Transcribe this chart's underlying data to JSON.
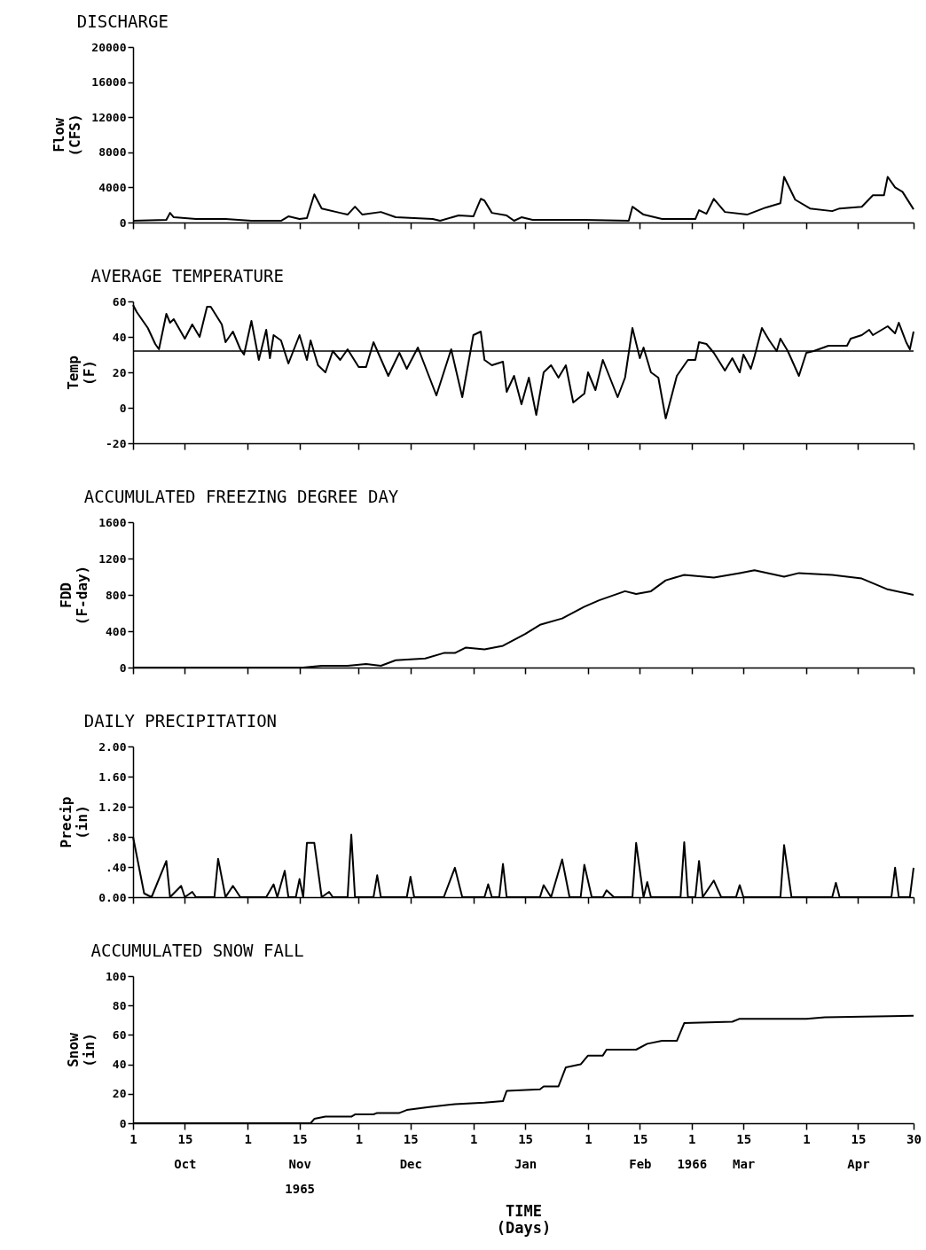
{
  "chart_data": [
    {
      "type": "line",
      "title": "DISCHARGE",
      "ylabel": "Flow\n(CFS)",
      "color": "#000000",
      "tick_labels": "y",
      "xlim": [
        "1965-10-01",
        "1966-04-30"
      ],
      "xticks": [
        {
          "value": "1965-10-01",
          "label": null
        },
        {
          "value": "1965-10-15",
          "label": null
        },
        {
          "value": "1965-11-01",
          "label": null
        },
        {
          "value": "1965-11-15",
          "label": null
        },
        {
          "value": "1965-12-01",
          "label": null
        },
        {
          "value": "1965-12-15",
          "label": null
        },
        {
          "value": "1966-01-01",
          "label": null
        },
        {
          "value": "1966-01-15",
          "label": null
        },
        {
          "value": "1966-02-01",
          "label": null
        },
        {
          "value": "1966-02-15",
          "label": null
        },
        {
          "value": "1966-03-01",
          "label": null
        },
        {
          "value": "1966-03-15",
          "label": null
        },
        {
          "value": "1966-04-01",
          "label": null
        },
        {
          "value": "1966-04-15",
          "label": null
        },
        {
          "value": "1966-04-30",
          "label": null
        }
      ],
      "ylim": [
        0,
        20000
      ],
      "yticks": [
        0,
        4000,
        8000,
        12000,
        16000,
        20000
      ],
      "x": [
        "1965-10-01",
        "1965-10-10",
        "1965-10-11",
        "1965-10-12",
        "1965-10-18",
        "1965-10-26",
        "1965-11-02",
        "1965-11-10",
        "1965-11-12",
        "1965-11-15",
        "1965-11-17",
        "1965-11-19",
        "1965-11-21",
        "1965-11-26",
        "1965-11-28",
        "1965-11-30",
        "1965-12-02",
        "1965-12-07",
        "1965-12-11",
        "1965-12-21",
        "1965-12-23",
        "1965-12-28",
        "1966-01-01",
        "1966-01-03",
        "1966-01-04",
        "1966-01-06",
        "1966-01-10",
        "1966-01-12",
        "1966-01-14",
        "1966-01-17",
        "1966-01-31",
        "1966-02-12",
        "1966-02-13",
        "1966-02-16",
        "1966-02-21",
        "1966-03-02",
        "1966-03-03",
        "1966-03-05",
        "1966-03-07",
        "1966-03-10",
        "1966-03-16",
        "1966-03-21",
        "1966-03-25",
        "1966-03-26",
        "1966-03-29",
        "1966-04-02",
        "1966-04-08",
        "1966-04-10",
        "1966-04-16",
        "1966-04-19",
        "1966-04-22",
        "1966-04-23",
        "1966-04-25",
        "1966-04-27",
        "1966-04-30"
      ],
      "values": [
        200,
        300,
        1100,
        600,
        400,
        400,
        200,
        200,
        700,
        400,
        500,
        3200,
        1600,
        1100,
        900,
        1800,
        900,
        1200,
        600,
        400,
        200,
        800,
        700,
        2700,
        2500,
        1100,
        800,
        200,
        600,
        300,
        300,
        200,
        1800,
        900,
        400,
        400,
        1400,
        1000,
        2700,
        1200,
        900,
        1700,
        2200,
        5200,
        2600,
        1600,
        1300,
        1600,
        1800,
        3100,
        3100,
        5200,
        4000,
        3500,
        1500
      ]
    },
    {
      "type": "line",
      "title": "AVERAGE TEMPERATURE",
      "ylabel": "Temp\n(F)",
      "color": "#000000",
      "tick_labels": "y",
      "xlim": [
        "1965-10-01",
        "1966-04-30"
      ],
      "xticks": [
        {
          "value": "1965-10-01",
          "label": null
        },
        {
          "value": "1965-10-15",
          "label": null
        },
        {
          "value": "1965-11-01",
          "label": null
        },
        {
          "value": "1965-11-15",
          "label": null
        },
        {
          "value": "1965-12-01",
          "label": null
        },
        {
          "value": "1965-12-15",
          "label": null
        },
        {
          "value": "1966-01-01",
          "label": null
        },
        {
          "value": "1966-01-15",
          "label": null
        },
        {
          "value": "1966-02-01",
          "label": null
        },
        {
          "value": "1966-02-15",
          "label": null
        },
        {
          "value": "1966-03-01",
          "label": null
        },
        {
          "value": "1966-03-15",
          "label": null
        },
        {
          "value": "1966-04-01",
          "label": null
        },
        {
          "value": "1966-04-15",
          "label": null
        },
        {
          "value": "1966-04-30",
          "label": null
        }
      ],
      "ylim": [
        -20,
        60
      ],
      "yticks": [
        -20,
        0,
        20,
        40,
        60
      ],
      "ref_lines": [
        {
          "axis": "y",
          "value": 32
        }
      ],
      "x": [
        "1965-10-01",
        "1965-10-02",
        "1965-10-05",
        "1965-10-07",
        "1965-10-08",
        "1965-10-10",
        "1965-10-11",
        "1965-10-12",
        "1965-10-15",
        "1965-10-17",
        "1965-10-19",
        "1965-10-21",
        "1965-10-22",
        "1965-10-25",
        "1965-10-26",
        "1965-10-28",
        "1965-10-30",
        "1965-10-31",
        "1965-11-02",
        "1965-11-04",
        "1965-11-06",
        "1965-11-07",
        "1965-11-08",
        "1965-11-10",
        "1965-11-12",
        "1965-11-15",
        "1965-11-17",
        "1965-11-18",
        "1965-11-20",
        "1965-11-22",
        "1965-11-24",
        "1965-11-26",
        "1965-11-28",
        "1965-12-01",
        "1965-12-03",
        "1965-12-05",
        "1965-12-09",
        "1965-12-12",
        "1965-12-14",
        "1965-12-17",
        "1965-12-22",
        "1965-12-26",
        "1965-12-29",
        "1966-01-01",
        "1966-01-03",
        "1966-01-04",
        "1966-01-06",
        "1966-01-09",
        "1966-01-10",
        "1966-01-12",
        "1966-01-14",
        "1966-01-16",
        "1966-01-18",
        "1966-01-20",
        "1966-01-22",
        "1966-01-24",
        "1966-01-26",
        "1966-01-28",
        "1966-01-31",
        "1966-02-01",
        "1966-02-03",
        "1966-02-05",
        "1966-02-09",
        "1966-02-11",
        "1966-02-13",
        "1966-02-15",
        "1966-02-16",
        "1966-02-18",
        "1966-02-20",
        "1966-02-22",
        "1966-02-25",
        "1966-02-28",
        "1966-03-02",
        "1966-03-03",
        "1966-03-05",
        "1966-03-07",
        "1966-03-10",
        "1966-03-12",
        "1966-03-14",
        "1966-03-15",
        "1966-03-17",
        "1966-03-18",
        "1966-03-20",
        "1966-03-22",
        "1966-03-24",
        "1966-03-25",
        "1966-03-27",
        "1966-03-30",
        "1966-04-01",
        "1966-04-03",
        "1966-04-07",
        "1966-04-12",
        "1966-04-13",
        "1966-04-16",
        "1966-04-18",
        "1966-04-19",
        "1966-04-23",
        "1966-04-25",
        "1966-04-26",
        "1966-04-28",
        "1966-04-29",
        "1966-04-30"
      ],
      "values": [
        58,
        54,
        45,
        36,
        33,
        53,
        48,
        50,
        39,
        47,
        40,
        57,
        57,
        47,
        37,
        43,
        33,
        30,
        49,
        27,
        44,
        28,
        41,
        38,
        25,
        41,
        27,
        38,
        24,
        20,
        32,
        27,
        33,
        23,
        23,
        37,
        18,
        31,
        22,
        34,
        7,
        33,
        6,
        41,
        43,
        27,
        24,
        26,
        9,
        18,
        2,
        17,
        -4,
        20,
        24,
        17,
        24,
        3,
        8,
        20,
        10,
        27,
        6,
        17,
        45,
        28,
        34,
        20,
        17,
        -6,
        18,
        27,
        27,
        37,
        36,
        31,
        21,
        28,
        20,
        30,
        22,
        29,
        45,
        38,
        32,
        39,
        32,
        18,
        31,
        32,
        35,
        35,
        39,
        41,
        44,
        41,
        46,
        42,
        48,
        37,
        33,
        43
      ]
    },
    {
      "type": "line",
      "title": "ACCUMULATED FREEZING DEGREE DAY",
      "ylabel": "FDD\n(F-day)",
      "color": "#000000",
      "tick_labels": "y",
      "xlim": [
        "1965-10-01",
        "1966-04-30"
      ],
      "xticks": [
        {
          "value": "1965-10-01",
          "label": null
        },
        {
          "value": "1965-10-15",
          "label": null
        },
        {
          "value": "1965-11-01",
          "label": null
        },
        {
          "value": "1965-11-15",
          "label": null
        },
        {
          "value": "1965-12-01",
          "label": null
        },
        {
          "value": "1965-12-15",
          "label": null
        },
        {
          "value": "1966-01-01",
          "label": null
        },
        {
          "value": "1966-01-15",
          "label": null
        },
        {
          "value": "1966-02-01",
          "label": null
        },
        {
          "value": "1966-02-15",
          "label": null
        },
        {
          "value": "1966-03-01",
          "label": null
        },
        {
          "value": "1966-03-15",
          "label": null
        },
        {
          "value": "1966-04-01",
          "label": null
        },
        {
          "value": "1966-04-15",
          "label": null
        },
        {
          "value": "1966-04-30",
          "label": null
        }
      ],
      "ylim": [
        0,
        1600
      ],
      "yticks": [
        0,
        400,
        800,
        1200,
        1600
      ],
      "x": [
        "1965-10-01",
        "1965-11-16",
        "1965-11-21",
        "1965-11-28",
        "1965-12-03",
        "1965-12-07",
        "1965-12-11",
        "1965-12-15",
        "1965-12-19",
        "1965-12-24",
        "1965-12-27",
        "1965-12-30",
        "1966-01-04",
        "1966-01-09",
        "1966-01-15",
        "1966-01-19",
        "1966-01-25",
        "1966-01-31",
        "1966-02-04",
        "1966-02-11",
        "1966-02-14",
        "1966-02-18",
        "1966-02-22",
        "1966-02-27",
        "1966-03-07",
        "1966-03-14",
        "1966-03-18",
        "1966-03-26",
        "1966-03-30",
        "1966-04-08",
        "1966-04-16",
        "1966-04-23",
        "1966-04-30"
      ],
      "values": [
        0,
        0,
        20,
        20,
        40,
        20,
        80,
        90,
        100,
        160,
        160,
        220,
        200,
        240,
        370,
        470,
        540,
        670,
        740,
        840,
        810,
        840,
        960,
        1020,
        990,
        1040,
        1070,
        1000,
        1040,
        1020,
        980,
        860,
        800
      ]
    },
    {
      "type": "line",
      "title": "DAILY PRECIPITATION",
      "ylabel": "Precip\n(in)",
      "color": "#000000",
      "tick_labels": "y",
      "xlim": [
        "1965-10-01",
        "1966-04-30"
      ],
      "xticks": [
        {
          "value": "1965-10-01",
          "label": null
        },
        {
          "value": "1965-10-15",
          "label": null
        },
        {
          "value": "1965-11-01",
          "label": null
        },
        {
          "value": "1965-11-15",
          "label": null
        },
        {
          "value": "1965-12-01",
          "label": null
        },
        {
          "value": "1965-12-15",
          "label": null
        },
        {
          "value": "1966-01-01",
          "label": null
        },
        {
          "value": "1966-01-15",
          "label": null
        },
        {
          "value": "1966-02-01",
          "label": null
        },
        {
          "value": "1966-02-15",
          "label": null
        },
        {
          "value": "1966-03-01",
          "label": null
        },
        {
          "value": "1966-03-15",
          "label": null
        },
        {
          "value": "1966-04-01",
          "label": null
        },
        {
          "value": "1966-04-15",
          "label": null
        },
        {
          "value": "1966-04-30",
          "label": null
        }
      ],
      "ylim": [
        0,
        2
      ],
      "yticks": [
        {
          "value": 0,
          "label": "0.00"
        },
        {
          "value": 0.4,
          "label": ".40"
        },
        {
          "value": 0.8,
          "label": ".80"
        },
        {
          "value": 1.2,
          "label": "1.20"
        },
        {
          "value": 1.6,
          "label": "1.60"
        },
        {
          "value": 2,
          "label": "2.00"
        }
      ],
      "x": [
        "1965-10-01",
        "1965-10-04",
        "1965-10-06",
        "1965-10-10",
        "1965-10-11",
        "1965-10-14",
        "1965-10-15",
        "1965-10-17",
        "1965-10-18",
        "1965-10-23",
        "1965-10-24",
        "1965-10-26",
        "1965-10-28",
        "1965-10-30",
        "1965-11-06",
        "1965-11-08",
        "1965-11-09",
        "1965-11-11",
        "1965-11-12",
        "1965-11-14",
        "1965-11-15",
        "1965-11-16",
        "1965-11-17",
        "1965-11-19",
        "1965-11-21",
        "1965-11-23",
        "1965-11-24",
        "1965-11-28",
        "1965-11-29",
        "1965-11-30",
        "1965-12-05",
        "1965-12-06",
        "1965-12-07",
        "1965-12-14",
        "1965-12-15",
        "1965-12-16",
        "1965-12-24",
        "1965-12-27",
        "1965-12-29",
        "1966-01-04",
        "1966-01-05",
        "1966-01-06",
        "1966-01-08",
        "1966-01-09",
        "1966-01-10",
        "1966-01-19",
        "1966-01-20",
        "1966-01-22",
        "1966-01-25",
        "1966-01-27",
        "1966-01-30",
        "1966-01-31",
        "1966-02-02",
        "1966-02-05",
        "1966-02-06",
        "1966-02-08",
        "1966-02-13",
        "1966-02-14",
        "1966-02-16",
        "1966-02-17",
        "1966-02-18",
        "1966-02-26",
        "1966-02-27",
        "1966-02-28",
        "1966-03-02",
        "1966-03-03",
        "1966-03-04",
        "1966-03-07",
        "1966-03-09",
        "1966-03-13",
        "1966-03-14",
        "1966-03-15",
        "1966-03-25",
        "1966-03-26",
        "1966-03-28",
        "1966-04-08",
        "1966-04-09",
        "1966-04-10",
        "1966-04-24",
        "1966-04-25",
        "1966-04-26",
        "1966-04-29",
        "1966-04-30"
      ],
      "values": [
        0.8,
        0.05,
        0,
        0.48,
        0,
        0.15,
        0,
        0.07,
        0,
        0,
        0.51,
        0,
        0.15,
        0,
        0,
        0.17,
        0,
        0.35,
        0,
        0,
        0.24,
        0,
        0.72,
        0.72,
        0,
        0.07,
        0,
        0,
        0.83,
        0,
        0,
        0.29,
        0,
        0,
        0.27,
        0,
        0,
        0.39,
        0,
        0,
        0.17,
        0,
        0,
        0.44,
        0,
        0,
        0.16,
        0,
        0.5,
        0,
        0,
        0.43,
        0,
        0,
        0.09,
        0,
        0,
        0.72,
        0,
        0.2,
        0,
        0,
        0.73,
        0,
        0,
        0.48,
        0,
        0.22,
        0,
        0,
        0.16,
        0,
        0,
        0.69,
        0,
        0,
        0.19,
        0,
        0,
        0.39,
        0,
        0,
        0.39
      ]
    },
    {
      "type": "line",
      "title": "ACCUMULATED SNOW FALL",
      "ylabel": "Snow\n(in)",
      "xlabel": "TIME\n(Days)",
      "color": "#000000",
      "xlim": [
        "1965-10-01",
        "1966-04-30"
      ],
      "xticks": [
        {
          "value": "1965-10-01",
          "label": "1"
        },
        {
          "value": "1965-10-15",
          "label": "15\nOct"
        },
        {
          "value": "1965-11-01",
          "label": "1"
        },
        {
          "value": "1965-11-15",
          "label": "15\nNov\n1965"
        },
        {
          "value": "1965-12-01",
          "label": "1"
        },
        {
          "value": "1965-12-15",
          "label": "15\nDec"
        },
        {
          "value": "1966-01-01",
          "label": "1"
        },
        {
          "value": "1966-01-15",
          "label": "15\nJan"
        },
        {
          "value": "1966-02-01",
          "label": "1"
        },
        {
          "value": "1966-02-15",
          "label": "15\nFeb"
        },
        {
          "value": "1966-03-01",
          "label": "1\n\n1966"
        },
        {
          "value": "1966-03-15",
          "label": "15\nMar"
        },
        {
          "value": "1966-04-01",
          "label": "1"
        },
        {
          "value": "1966-04-15",
          "label": "15\nApr"
        },
        {
          "value": "1966-04-30",
          "label": "30"
        }
      ],
      "ylim": [
        0,
        100
      ],
      "yticks": [
        0,
        20,
        40,
        60,
        80,
        100
      ],
      "x": [
        "1965-10-01",
        "1965-11-18",
        "1965-11-19",
        "1965-11-22",
        "1965-11-29",
        "1965-11-30",
        "1965-12-05",
        "1965-12-06",
        "1965-12-12",
        "1965-12-14",
        "1965-12-20",
        "1965-12-27",
        "1966-01-04",
        "1966-01-09",
        "1966-01-10",
        "1966-01-19",
        "1966-01-20",
        "1966-01-24",
        "1966-01-26",
        "1966-01-30",
        "1966-02-01",
        "1966-02-05",
        "1966-02-06",
        "1966-02-14",
        "1966-02-17",
        "1966-02-21",
        "1966-02-25",
        "1966-02-27",
        "1966-03-12",
        "1966-03-14",
        "1966-04-01",
        "1966-04-06",
        "1966-04-30"
      ],
      "values": [
        0,
        0,
        3,
        4.5,
        4.5,
        6,
        6,
        7,
        7,
        9,
        11,
        13,
        14,
        15,
        22,
        23,
        25,
        25,
        38,
        40,
        46,
        46,
        50,
        50,
        54,
        56,
        56,
        68,
        69,
        71,
        71,
        72,
        73
      ]
    }
  ]
}
